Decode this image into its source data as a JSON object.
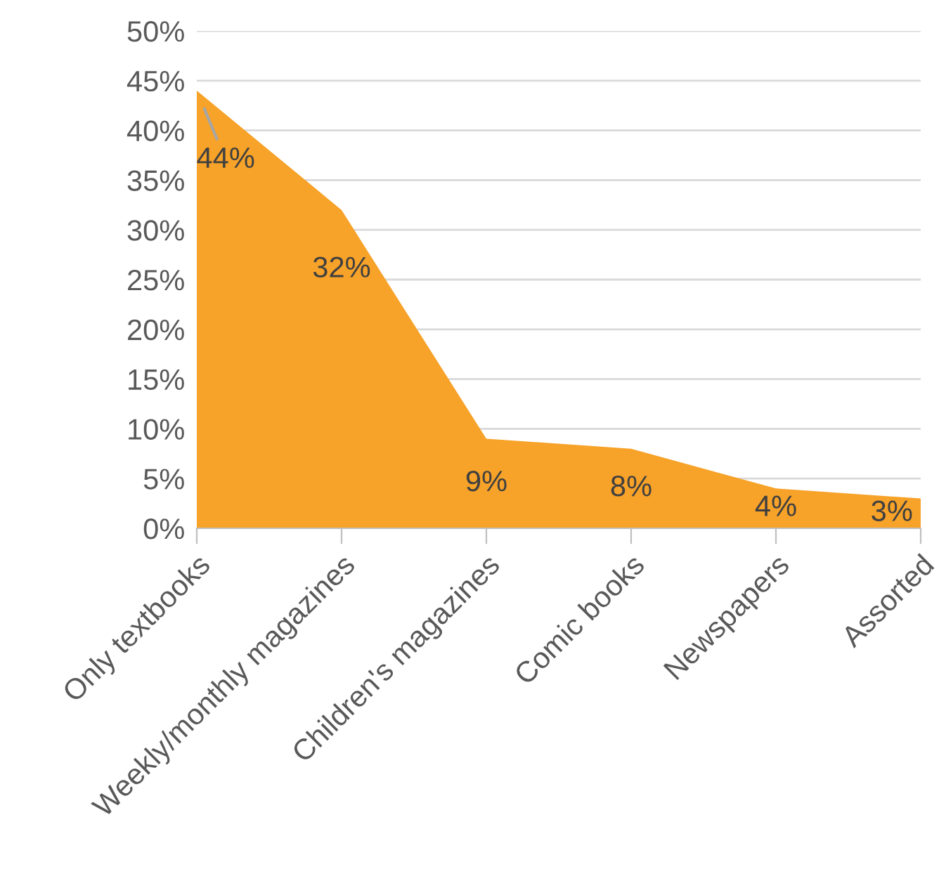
{
  "chart_data": {
    "type": "area",
    "categories": [
      "Only textbooks",
      "Weekly/monthly magazines",
      "Children's magazines",
      "Comic books",
      "Newspapers",
      "Assorted"
    ],
    "values": [
      44,
      32,
      9,
      8,
      4,
      3
    ],
    "value_labels": [
      "44%",
      "32%",
      "9%",
      "8%",
      "4%",
      "3%"
    ],
    "color": "#f7a228",
    "ylim": [
      0,
      50
    ],
    "yticks": [
      {
        "value": 0,
        "label": "0%"
      },
      {
        "value": 5,
        "label": "5%"
      },
      {
        "value": 10,
        "label": "10%"
      },
      {
        "value": 15,
        "label": "15%"
      },
      {
        "value": 20,
        "label": "20%"
      },
      {
        "value": 25,
        "label": "25%"
      },
      {
        "value": 30,
        "label": "30%"
      },
      {
        "value": 35,
        "label": "35%"
      },
      {
        "value": 40,
        "label": "40%"
      },
      {
        "value": 45,
        "label": "45%"
      },
      {
        "value": 50,
        "label": "50%"
      }
    ],
    "grid": "y",
    "legend": false
  }
}
